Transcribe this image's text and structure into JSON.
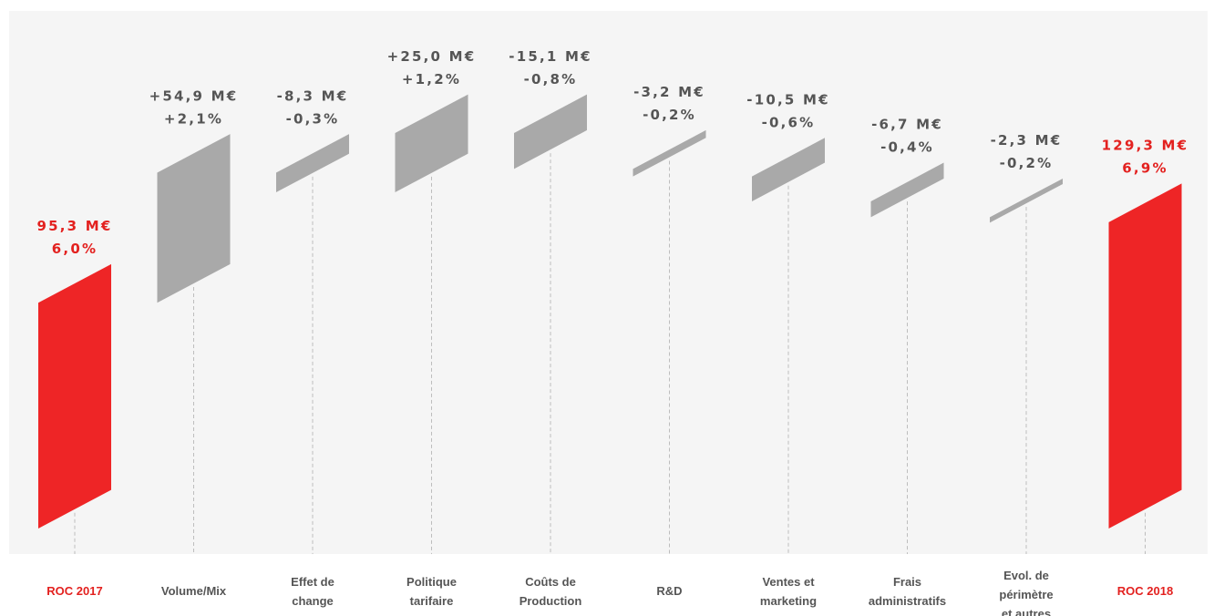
{
  "chart_data": {
    "type": "bar",
    "subtype": "waterfall",
    "title": "",
    "xlabel": "",
    "ylabel": "",
    "grid": false,
    "legend": "none",
    "colors": {
      "total": "#ee2526",
      "step": "#a9a9a9",
      "background": "#f5f5f5",
      "label_dark": "#555555",
      "label_red": "#e3211f",
      "dash": "#bdbdbd"
    },
    "items": [
      {
        "label": "ROC 2017",
        "kind": "total",
        "value": 95.3,
        "value_label": "95,3 M€",
        "pct_label": "6,0%"
      },
      {
        "label": "Volume/Mix",
        "kind": "delta",
        "value": 54.9,
        "value_label": "+54,9 M€",
        "pct_label": "+2,1%"
      },
      {
        "label": "Effet de change",
        "kind": "delta",
        "value": -8.3,
        "value_label": "-8,3 M€",
        "pct_label": "-0,3%"
      },
      {
        "label": "Politique tarifaire",
        "kind": "delta",
        "value": 25.0,
        "value_label": "+25,0 M€",
        "pct_label": "+1,2%"
      },
      {
        "label": "Coûts de Production",
        "kind": "delta",
        "value": -15.1,
        "value_label": "-15,1 M€",
        "pct_label": "-0,8%"
      },
      {
        "label": "R&D",
        "kind": "delta",
        "value": -3.2,
        "value_label": "-3,2 M€",
        "pct_label": "-0,2%"
      },
      {
        "label": "Ventes et marketing",
        "kind": "delta",
        "value": -10.5,
        "value_label": "-10,5 M€",
        "pct_label": "-0,6%"
      },
      {
        "label": "Frais administratifs",
        "kind": "delta",
        "value": -6.7,
        "value_label": "-6,7 M€",
        "pct_label": "-0,4%"
      },
      {
        "label": "Evol. de périmètre et autres",
        "kind": "delta",
        "value": -2.3,
        "value_label": "-2,3 M€",
        "pct_label": "-0,2%"
      },
      {
        "label": "ROC 2018",
        "kind": "total",
        "value": 129.3,
        "value_label": "129,3 M€",
        "pct_label": "6,9%"
      }
    ]
  }
}
